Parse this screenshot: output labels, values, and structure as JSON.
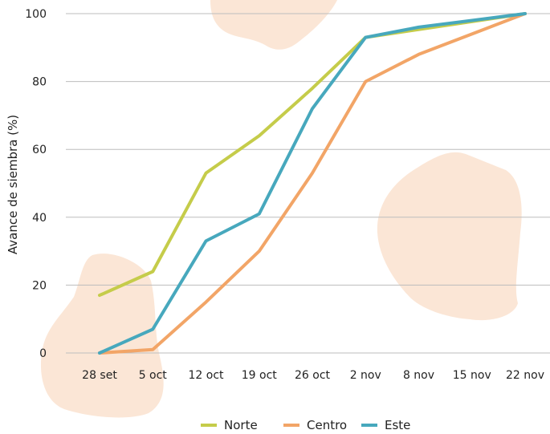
{
  "chart_data": {
    "type": "line",
    "title": "",
    "xlabel": "",
    "ylabel": "Avance de siembra (%)",
    "categories": [
      "28 set",
      "5 oct",
      "12 oct",
      "19 oct",
      "26 oct",
      "2 nov",
      "8 nov",
      "15 nov",
      "22 nov"
    ],
    "ylim": [
      0,
      100
    ],
    "yticks": [
      0,
      20,
      40,
      60,
      80,
      100
    ],
    "grid": true,
    "legend_position": "bottom",
    "series": [
      {
        "name": "Norte",
        "color": "#c5cc4a",
        "values": [
          17,
          24,
          53,
          64,
          78,
          93,
          null,
          null,
          100
        ]
      },
      {
        "name": "Centro",
        "color": "#f2a567",
        "values": [
          0,
          1,
          15,
          30,
          53,
          80,
          88,
          94,
          100
        ]
      },
      {
        "name": "Este",
        "color": "#47a8bd",
        "values": [
          0,
          7,
          33,
          41,
          72,
          93,
          96,
          98,
          100
        ]
      }
    ]
  }
}
